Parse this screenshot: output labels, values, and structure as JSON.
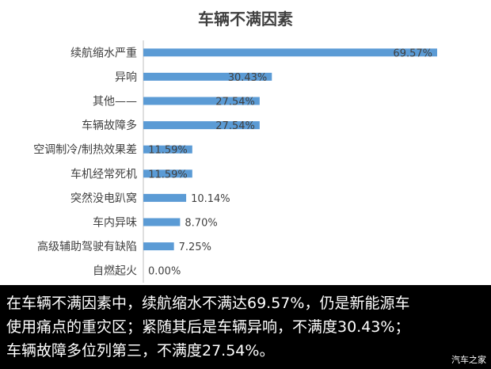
{
  "chart_data": {
    "type": "bar",
    "orientation": "horizontal",
    "title": "车辆不满因素",
    "categories": [
      "续航缩水严重",
      "异响",
      "其他——",
      "车辆故障多",
      "空调制冷/制热效果差",
      "车机经常死机",
      "突然没电趴窝",
      "车内异味",
      "高级辅助驾驶有缺陷",
      "自燃起火"
    ],
    "values": [
      69.57,
      30.43,
      27.54,
      27.54,
      11.59,
      11.59,
      10.14,
      8.7,
      7.25,
      0.0
    ],
    "data_labels": [
      "69.57%",
      "30.43%",
      "27.54%",
      "27.54%",
      "11.59%",
      "11.59%",
      "10.14%",
      "8.70%",
      "7.25%",
      "0.00%"
    ],
    "xlim": [
      0,
      70
    ],
    "grid": false,
    "legend": "none",
    "bar_color": "#5b9bd5"
  },
  "caption": {
    "lines": [
      "在车辆不满因素中，续航缩水不满达69.57%，仍是新能源车",
      "使用痛点的重灾区；紧随其后是车辆异响，不满度30.43%；",
      "车辆故障多位列第三，不满度27.54%。"
    ]
  },
  "watermark": "汽车之家"
}
